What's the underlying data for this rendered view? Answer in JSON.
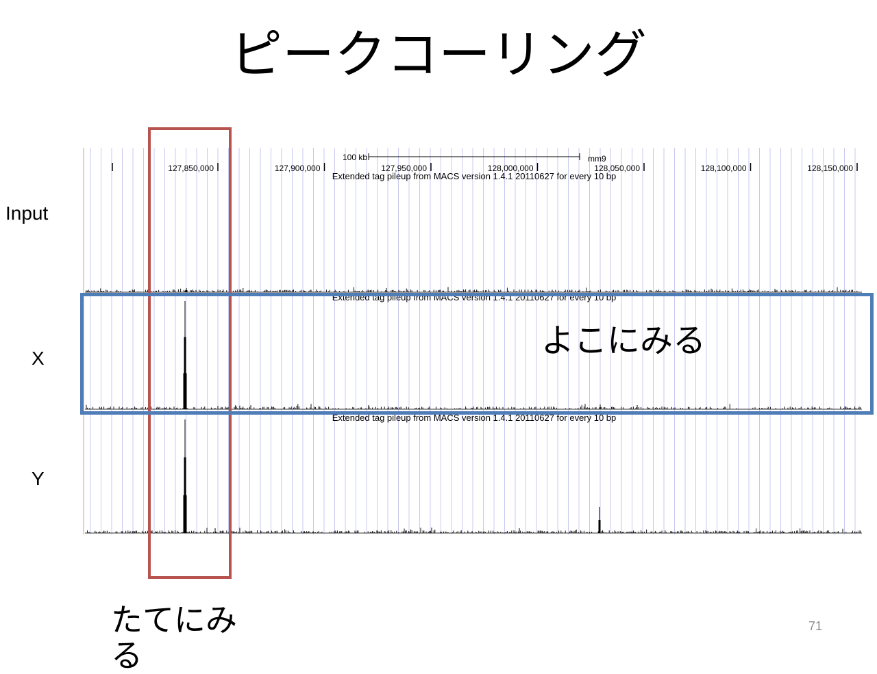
{
  "title": "ピークコーリング",
  "tracks": [
    {
      "label": "Input",
      "caption": "Extended tag pileup from MACS version 1.4.1 20110627 for every 10 bp"
    },
    {
      "label": "X",
      "caption": "Extended tag pileup from MACS version 1.4.1 20110627 for every 10 bp"
    },
    {
      "label": "Y",
      "caption": "Extended tag pileup from MACS version 1.4.1 20110627 for every 10 bp"
    }
  ],
  "ruler": {
    "scale_label": "100 kb",
    "assembly": "mm9",
    "positions": [
      "127,850,000",
      "127,900,000",
      "127,950,000",
      "128,000,000",
      "128,050,000",
      "128,100,000",
      "128,150,000"
    ]
  },
  "annotations": {
    "horizontal": "よこにみる",
    "vertical": "たてにみる"
  },
  "colors": {
    "vertical_box": "#b85450",
    "horizontal_box": "#4f7db8",
    "grid": "#c8c8f0"
  },
  "page_number": "71"
}
